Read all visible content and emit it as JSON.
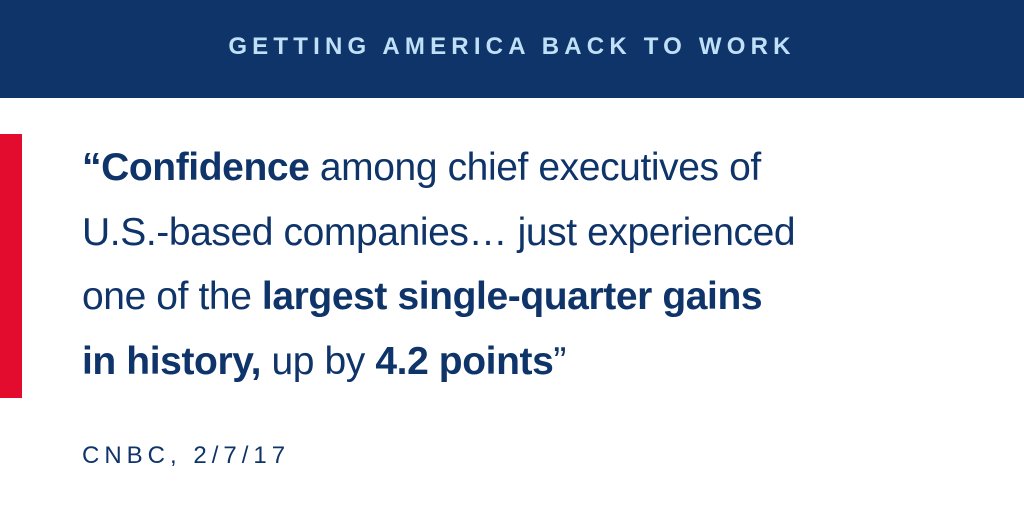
{
  "banner": {
    "title": "GETTING AMERICA BACK TO WORK"
  },
  "colors": {
    "banner_background": "#0f3469",
    "banner_text": "#bfe0f7",
    "accent": "#e30b2e",
    "body_text": "#0f3469",
    "page_background": "#ffffff"
  },
  "quote": {
    "lines": [
      [
        {
          "text": "“Confidence",
          "bold": true
        },
        {
          "text": " among chief executives of",
          "bold": false
        }
      ],
      [
        {
          "text": "U.S.-based companies… just experienced",
          "bold": false
        }
      ],
      [
        {
          "text": "one of the ",
          "bold": false
        },
        {
          "text": "largest single-quarter gains",
          "bold": true
        }
      ],
      [
        {
          "text": "in history,",
          "bold": true
        },
        {
          "text": " up by ",
          "bold": false
        },
        {
          "text": "4.2 points",
          "bold": true
        },
        {
          "text": "”",
          "bold": false
        }
      ]
    ]
  },
  "source": {
    "citation": "CNBC, 2/7/17"
  }
}
